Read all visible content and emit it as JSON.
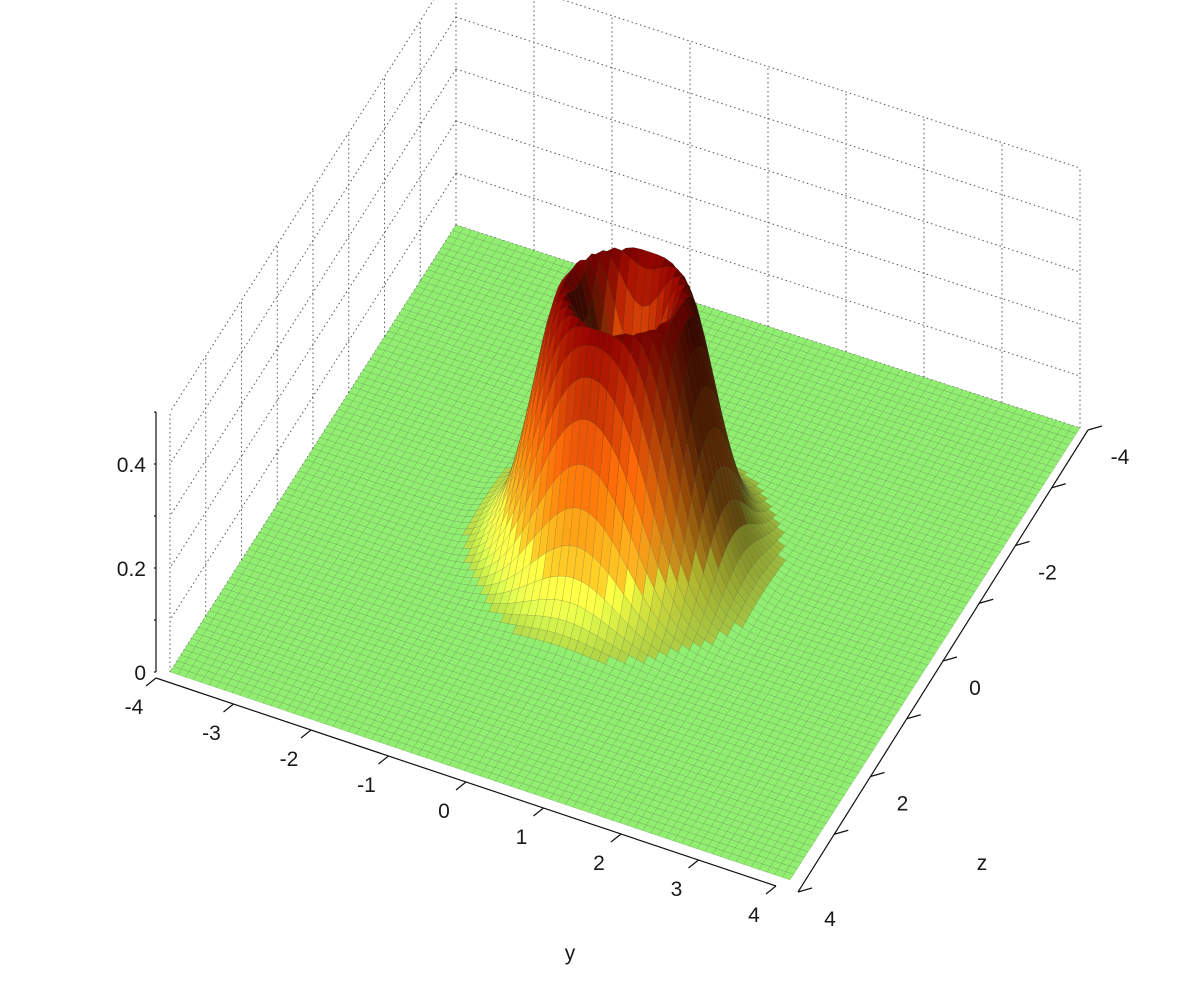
{
  "chart_data": {
    "type": "surface",
    "title": "",
    "xlabel": "y",
    "ylabel": "z",
    "zlabel": "",
    "x_ticks": [
      -4,
      -3,
      -2,
      -1,
      0,
      1,
      2,
      3,
      4
    ],
    "y_ticks": [
      -4,
      -2,
      0,
      2,
      4
    ],
    "z_ticks": [
      0,
      0.2,
      0.4
    ],
    "xlim": [
      -4,
      4
    ],
    "ylim": [
      -4,
      4
    ],
    "zlim": [
      0,
      0.5
    ],
    "grid": true,
    "colormap": "autumn",
    "colormap_low": "#90ee70",
    "colormap_high": "#8b0000",
    "surface": {
      "shape": "ring-shaped bump",
      "function": "z = a * r^2 * exp(-r^2 / s)",
      "center": [
        0,
        0
      ],
      "peak_value": 0.5,
      "peak_radius": 0.7,
      "grid_points": 80
    }
  }
}
